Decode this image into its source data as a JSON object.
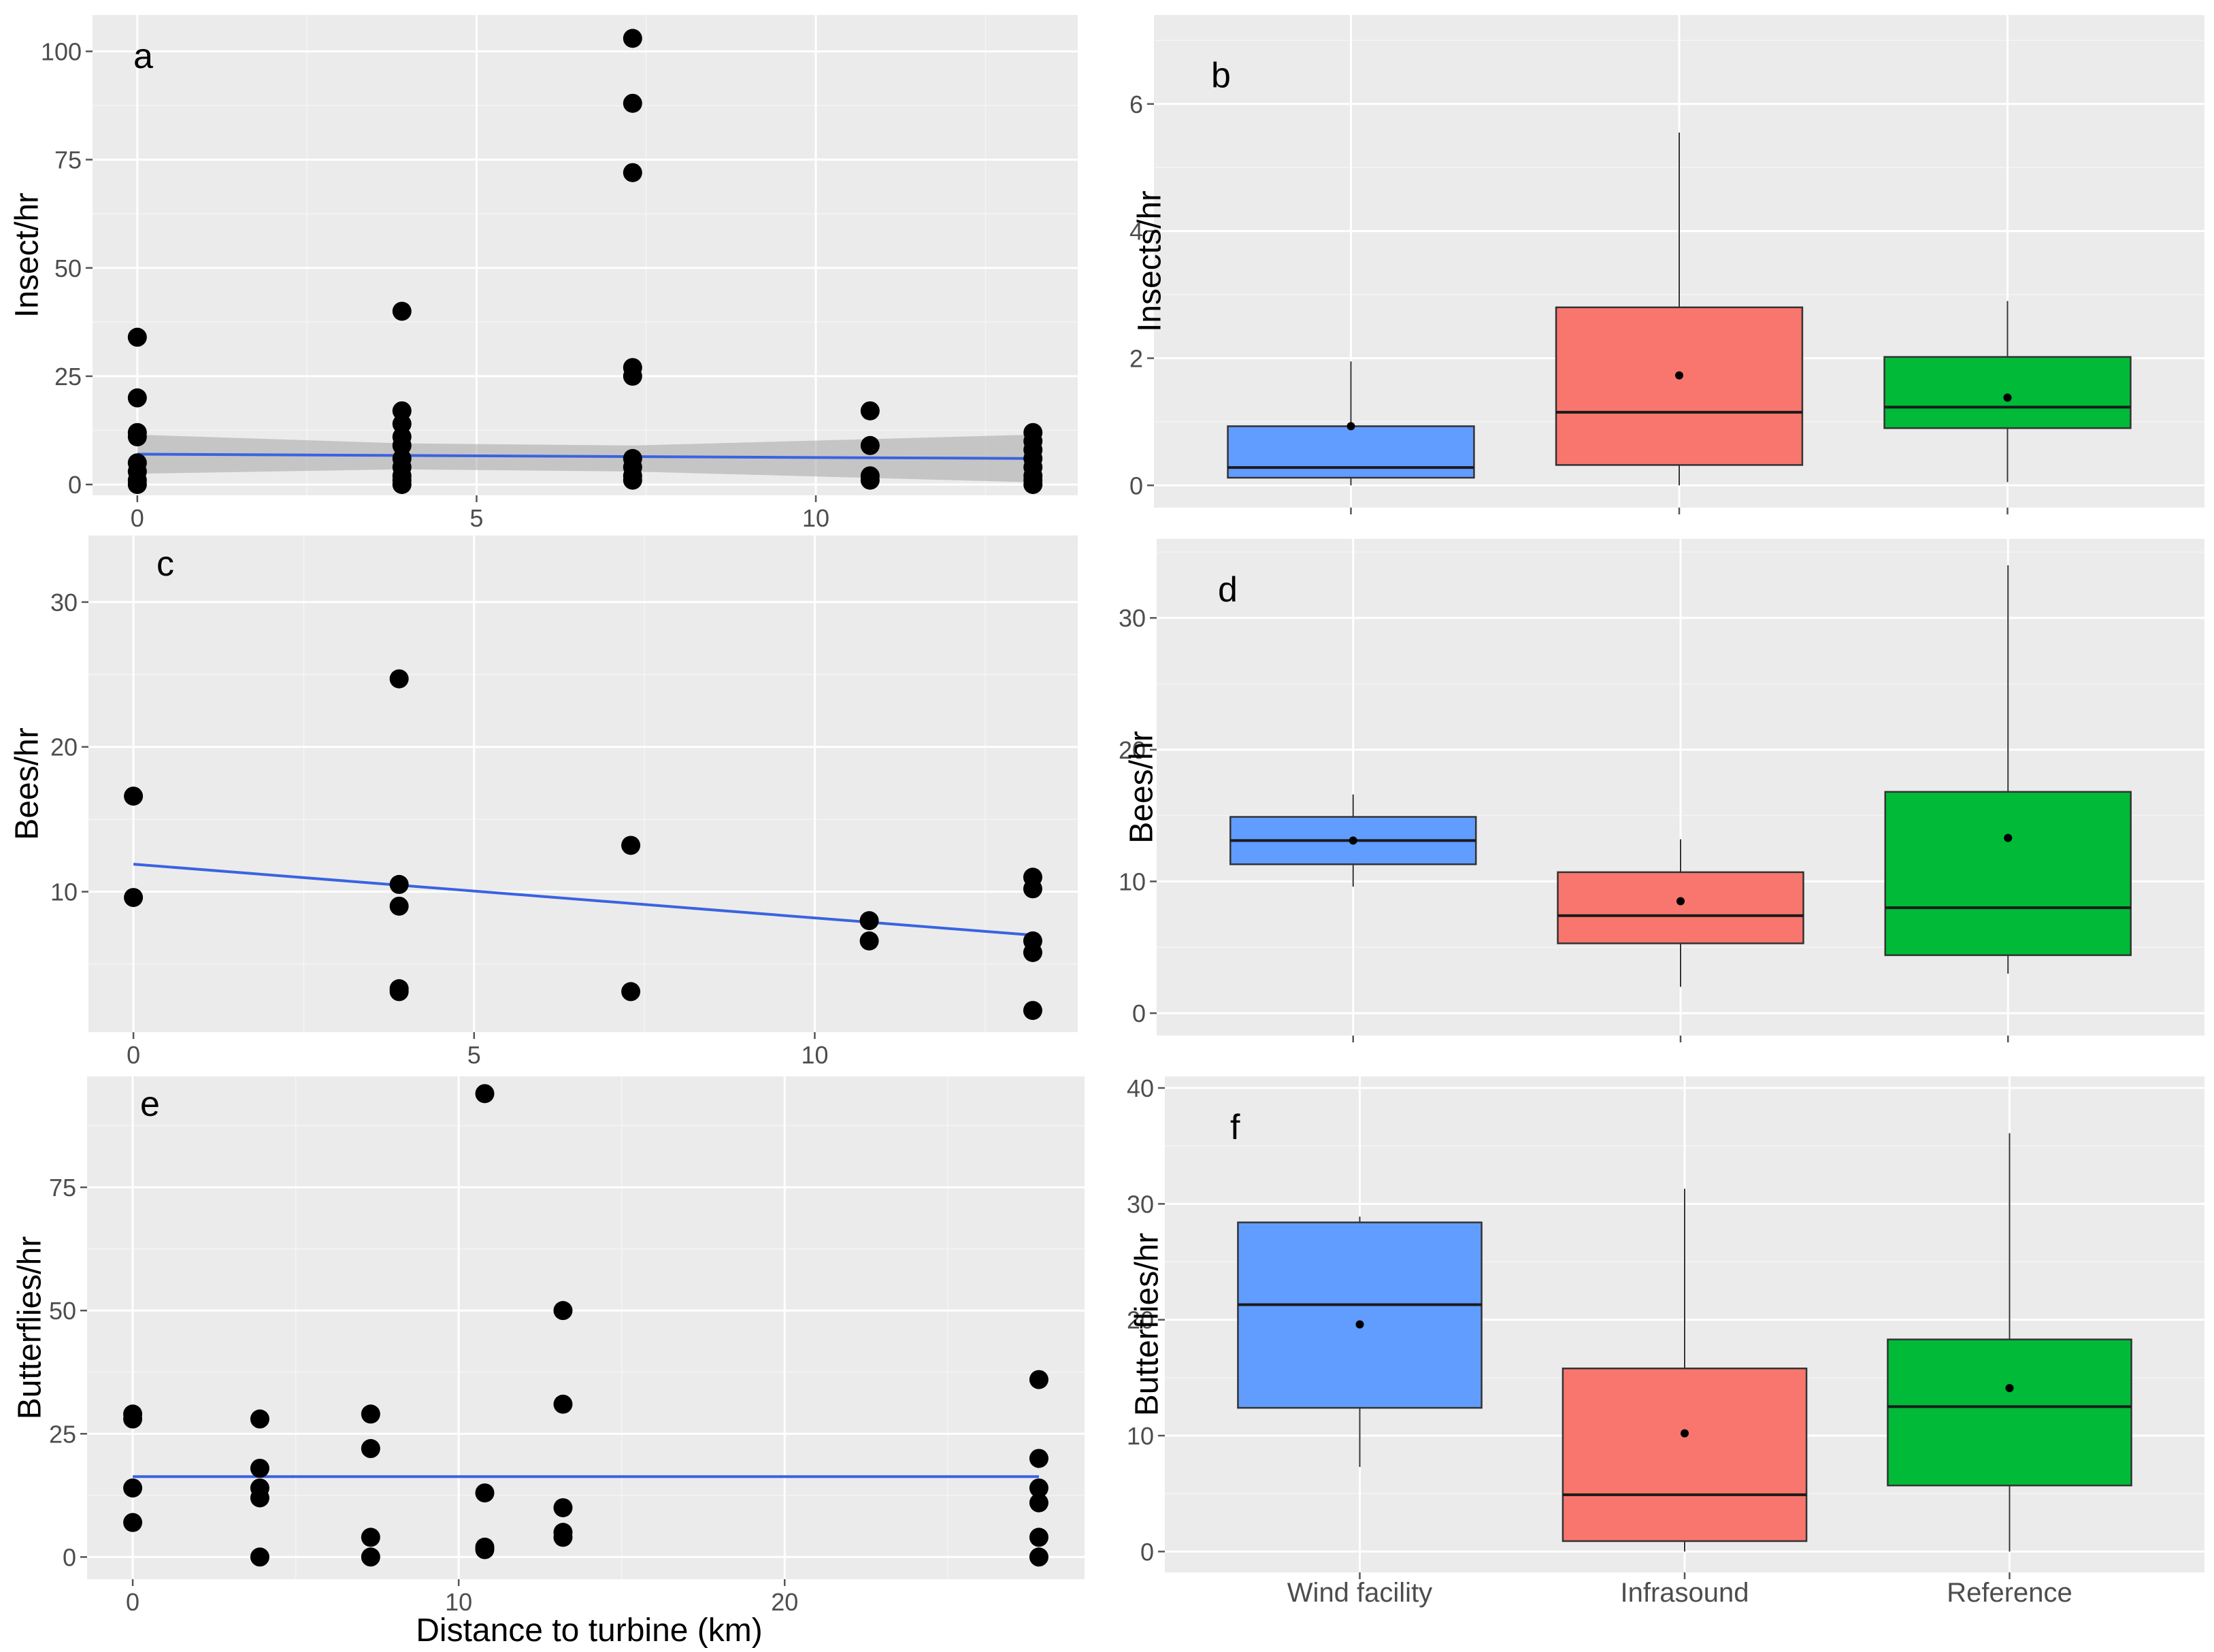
{
  "colors": {
    "wind_facility": "#619CFF",
    "infrasound": "#F8766D",
    "reference": "#00BA38",
    "fit_line": "#3A63E0",
    "ci_band": "#A6A6A6",
    "panel_bg": "#EBEBEB"
  },
  "chart_data": [
    {
      "id": "a",
      "type": "scatter",
      "panel_label": "a",
      "title": "",
      "xlabel": "",
      "ylabel": "Insect/hr",
      "xlim": [
        -0.66,
        13.86
      ],
      "ylim": [
        -2.5,
        108.4
      ],
      "x_ticks": [
        0,
        5,
        10
      ],
      "x_tick_labels": [
        "0",
        "5",
        "10"
      ],
      "y_ticks": [
        0,
        25,
        50,
        75,
        100
      ],
      "y_tick_labels": [
        "0",
        "25",
        "50",
        "75",
        "100"
      ],
      "show_x_tick_labels": true,
      "points": [
        {
          "x": 0,
          "y": 34
        },
        {
          "x": 0,
          "y": 20
        },
        {
          "x": 0,
          "y": 12
        },
        {
          "x": 0,
          "y": 11
        },
        {
          "x": 0,
          "y": 5
        },
        {
          "x": 0,
          "y": 3
        },
        {
          "x": 0,
          "y": 1
        },
        {
          "x": 0,
          "y": 0
        },
        {
          "x": 3.9,
          "y": 40
        },
        {
          "x": 3.9,
          "y": 17
        },
        {
          "x": 3.9,
          "y": 14
        },
        {
          "x": 3.9,
          "y": 11
        },
        {
          "x": 3.9,
          "y": 9
        },
        {
          "x": 3.9,
          "y": 6
        },
        {
          "x": 3.9,
          "y": 4
        },
        {
          "x": 3.9,
          "y": 2
        },
        {
          "x": 3.9,
          "y": 1
        },
        {
          "x": 3.9,
          "y": 0
        },
        {
          "x": 7.3,
          "y": 103
        },
        {
          "x": 7.3,
          "y": 88
        },
        {
          "x": 7.3,
          "y": 72
        },
        {
          "x": 7.3,
          "y": 27
        },
        {
          "x": 7.3,
          "y": 25
        },
        {
          "x": 7.3,
          "y": 6
        },
        {
          "x": 7.3,
          "y": 4
        },
        {
          "x": 7.3,
          "y": 2
        },
        {
          "x": 7.3,
          "y": 1
        },
        {
          "x": 10.8,
          "y": 17
        },
        {
          "x": 10.8,
          "y": 9
        },
        {
          "x": 10.8,
          "y": 2
        },
        {
          "x": 10.8,
          "y": 1
        },
        {
          "x": 13.2,
          "y": 12
        },
        {
          "x": 13.2,
          "y": 10
        },
        {
          "x": 13.2,
          "y": 8
        },
        {
          "x": 13.2,
          "y": 6
        },
        {
          "x": 13.2,
          "y": 4
        },
        {
          "x": 13.2,
          "y": 2
        },
        {
          "x": 13.2,
          "y": 1
        },
        {
          "x": 13.2,
          "y": 0
        }
      ],
      "fit": {
        "x": [
          0,
          13.2
        ],
        "y": [
          7,
          6
        ]
      },
      "ci_band": {
        "x": [
          0,
          3.9,
          7.3,
          13.2
        ],
        "lower": [
          2.5,
          3.5,
          3.0,
          0.5
        ],
        "upper": [
          11.5,
          9.5,
          9.0,
          11.5
        ]
      }
    },
    {
      "id": "b",
      "type": "box",
      "panel_label": "b",
      "title": "",
      "xlabel": "",
      "ylabel": "Insects/hr",
      "categories": [
        "Wind facility",
        "Infrasound",
        "Reference"
      ],
      "show_category_labels": false,
      "ylim": [
        -0.35,
        7.4
      ],
      "y_ticks": [
        0,
        2,
        4,
        6
      ],
      "y_tick_labels": [
        "0",
        "2",
        "4",
        "6"
      ],
      "boxes": [
        {
          "category": "Wind facility",
          "whisker_low": 0,
          "q1": 0.12,
          "median": 0.28,
          "q3": 0.93,
          "whisker_high": 1.95,
          "mean": 0.93,
          "color_key": "wind_facility"
        },
        {
          "category": "Infrasound",
          "whisker_low": 0,
          "q1": 0.32,
          "median": 1.15,
          "q3": 2.8,
          "whisker_high": 5.55,
          "mean": 1.73,
          "color_key": "infrasound"
        },
        {
          "category": "Reference",
          "whisker_low": 0.05,
          "q1": 0.9,
          "median": 1.23,
          "q3": 2.02,
          "whisker_high": 2.9,
          "mean": 1.38,
          "color_key": "reference"
        }
      ]
    },
    {
      "id": "c",
      "type": "scatter",
      "panel_label": "c",
      "title": "",
      "xlabel": "",
      "ylabel": "Bees/hr",
      "xlim": [
        -0.66,
        13.86
      ],
      "ylim": [
        0.3,
        34.6
      ],
      "x_ticks": [
        0,
        5,
        10
      ],
      "x_tick_labels": [
        "0",
        "5",
        "10"
      ],
      "y_ticks": [
        10,
        20,
        30
      ],
      "y_tick_labels": [
        "10",
        "20",
        "30"
      ],
      "show_x_tick_labels": true,
      "points": [
        {
          "x": 0,
          "y": 16.6
        },
        {
          "x": 0,
          "y": 9.6
        },
        {
          "x": 3.9,
          "y": 24.7
        },
        {
          "x": 3.9,
          "y": 10.5
        },
        {
          "x": 3.9,
          "y": 9.0
        },
        {
          "x": 3.9,
          "y": 3.3
        },
        {
          "x": 3.9,
          "y": 3.1
        },
        {
          "x": 7.3,
          "y": 13.2
        },
        {
          "x": 7.3,
          "y": 3.1
        },
        {
          "x": 10.8,
          "y": 8.0
        },
        {
          "x": 10.8,
          "y": 6.6
        },
        {
          "x": 13.2,
          "y": 11.0
        },
        {
          "x": 13.2,
          "y": 10.2
        },
        {
          "x": 13.2,
          "y": 6.6
        },
        {
          "x": 13.2,
          "y": 5.8
        },
        {
          "x": 13.2,
          "y": 1.8
        }
      ],
      "fit": {
        "x": [
          0,
          13.2
        ],
        "y": [
          11.9,
          7.0
        ]
      }
    },
    {
      "id": "d",
      "type": "box",
      "panel_label": "d",
      "title": "",
      "xlabel": "",
      "ylabel": "Bees/hr",
      "categories": [
        "Wind facility",
        "Infrasound",
        "Reference"
      ],
      "show_category_labels": false,
      "ylim": [
        -1.7,
        36
      ],
      "y_ticks": [
        0,
        10,
        20,
        30
      ],
      "y_tick_labels": [
        "0",
        "10",
        "20",
        "30"
      ],
      "boxes": [
        {
          "category": "Wind facility",
          "whisker_low": 9.6,
          "q1": 11.3,
          "median": 13.1,
          "q3": 14.9,
          "whisker_high": 16.6,
          "mean": 13.1,
          "color_key": "wind_facility"
        },
        {
          "category": "Infrasound",
          "whisker_low": 2.0,
          "q1": 5.3,
          "median": 7.4,
          "q3": 10.7,
          "whisker_high": 13.2,
          "mean": 8.5,
          "color_key": "infrasound"
        },
        {
          "category": "Reference",
          "whisker_low": 3.0,
          "q1": 4.4,
          "median": 8.0,
          "q3": 16.8,
          "whisker_high": 34.0,
          "mean": 13.3,
          "color_key": "reference"
        }
      ]
    },
    {
      "id": "e",
      "type": "scatter",
      "panel_label": "e",
      "title": "",
      "xlabel": "Distance to turbine (km)",
      "ylabel": "Butterflies/hr",
      "xlim": [
        -1.4,
        29.2
      ],
      "ylim": [
        -4.5,
        97.5
      ],
      "x_ticks": [
        0,
        10,
        20
      ],
      "x_tick_labels": [
        "0",
        "10",
        "20"
      ],
      "y_ticks": [
        0,
        25,
        50,
        75
      ],
      "y_tick_labels": [
        "0",
        "25",
        "50",
        "75"
      ],
      "show_x_tick_labels": true,
      "points": [
        {
          "x": 0,
          "y": 29
        },
        {
          "x": 0,
          "y": 28
        },
        {
          "x": 0,
          "y": 14
        },
        {
          "x": 0,
          "y": 7
        },
        {
          "x": 3.9,
          "y": 28
        },
        {
          "x": 3.9,
          "y": 18
        },
        {
          "x": 3.9,
          "y": 14
        },
        {
          "x": 3.9,
          "y": 12
        },
        {
          "x": 3.9,
          "y": 0
        },
        {
          "x": 7.3,
          "y": 29
        },
        {
          "x": 7.3,
          "y": 22
        },
        {
          "x": 7.3,
          "y": 4
        },
        {
          "x": 7.3,
          "y": 0
        },
        {
          "x": 10.8,
          "y": 94
        },
        {
          "x": 10.8,
          "y": 13
        },
        {
          "x": 10.8,
          "y": 2
        },
        {
          "x": 10.8,
          "y": 1.5
        },
        {
          "x": 13.2,
          "y": 50
        },
        {
          "x": 13.2,
          "y": 31
        },
        {
          "x": 13.2,
          "y": 10
        },
        {
          "x": 13.2,
          "y": 5
        },
        {
          "x": 13.2,
          "y": 4
        },
        {
          "x": 27.8,
          "y": 36
        },
        {
          "x": 27.8,
          "y": 20
        },
        {
          "x": 27.8,
          "y": 14
        },
        {
          "x": 27.8,
          "y": 11
        },
        {
          "x": 27.8,
          "y": 4
        },
        {
          "x": 27.8,
          "y": 0
        }
      ],
      "fit": {
        "x": [
          0,
          27.8
        ],
        "y": [
          16.3,
          16.3
        ]
      }
    },
    {
      "id": "f",
      "type": "box",
      "panel_label": "f",
      "title": "",
      "xlabel": "",
      "ylabel": "Butterflies/hr",
      "categories": [
        "Wind facility",
        "Infrasound",
        "Reference"
      ],
      "show_category_labels": true,
      "ylim": [
        -1.8,
        41
      ],
      "y_ticks": [
        0,
        10,
        20,
        30,
        40
      ],
      "y_tick_labels": [
        "0",
        "10",
        "20",
        "30",
        "40"
      ],
      "boxes": [
        {
          "category": "Wind facility",
          "whisker_low": 7.3,
          "q1": 12.4,
          "median": 21.3,
          "q3": 28.4,
          "whisker_high": 28.9,
          "mean": 19.6,
          "color_key": "wind_facility"
        },
        {
          "category": "Infrasound",
          "whisker_low": 0,
          "q1": 0.9,
          "median": 4.9,
          "q3": 15.8,
          "whisker_high": 31.3,
          "mean": 10.2,
          "color_key": "infrasound"
        },
        {
          "category": "Reference",
          "whisker_low": 0,
          "q1": 5.7,
          "median": 12.5,
          "q3": 18.3,
          "whisker_high": 36.1,
          "mean": 14.1,
          "color_key": "reference"
        }
      ]
    }
  ]
}
